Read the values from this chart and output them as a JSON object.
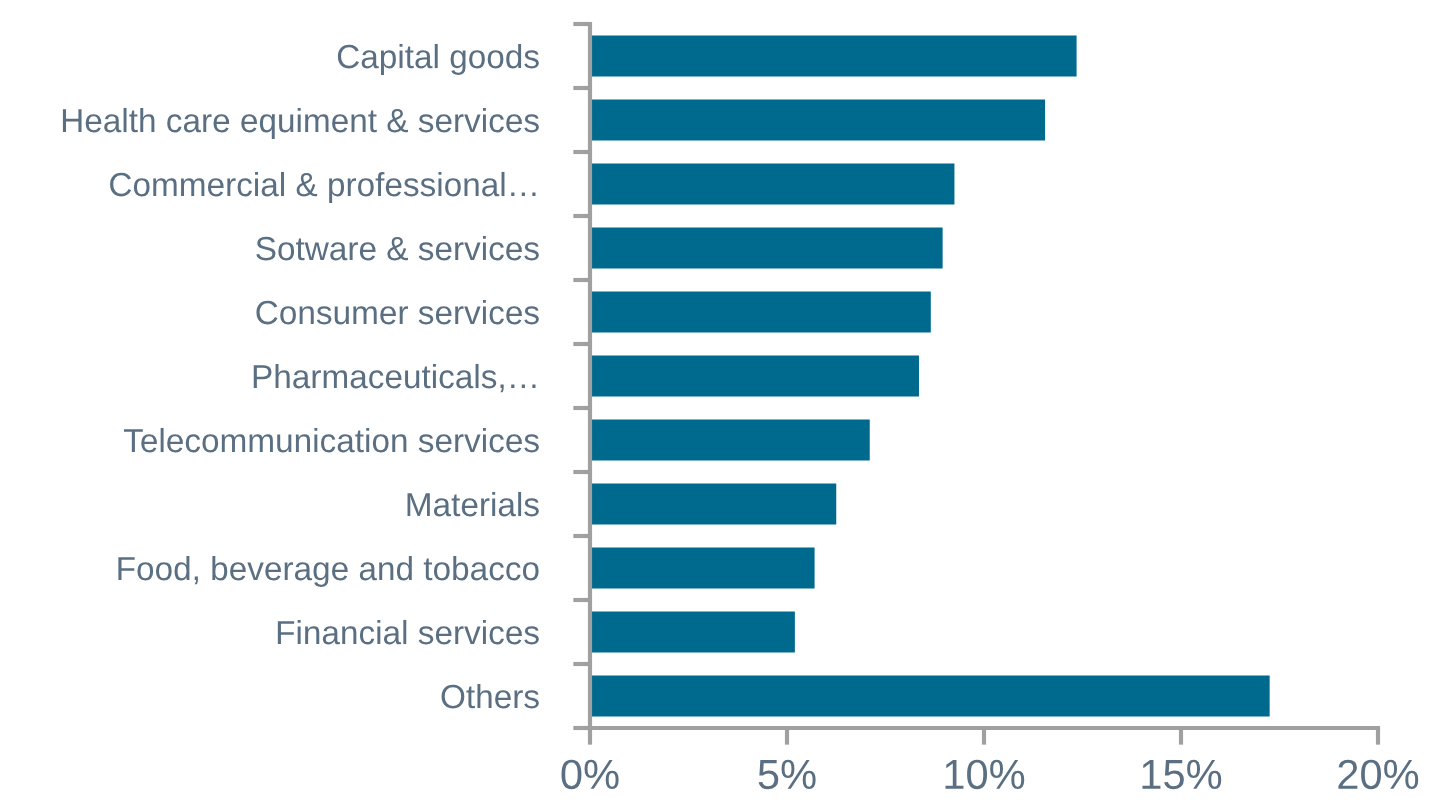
{
  "chart_data": {
    "type": "bar",
    "orientation": "horizontal",
    "categories": [
      "Capital goods",
      "Health care equiment & services",
      "Commercial & professional…",
      "Sotware & services",
      "Consumer services",
      "Pharmaceuticals,…",
      "Telecommunication services",
      "Materials",
      "Food, beverage and tobacco",
      "Financial services",
      "Others"
    ],
    "values": [
      12.35,
      11.55,
      9.25,
      8.95,
      8.65,
      8.35,
      7.1,
      6.25,
      5.7,
      5.2,
      17.25
    ],
    "color": "#006a8e",
    "xlim": [
      0,
      20
    ],
    "xticks": [
      {
        "value": 0,
        "label": "0%"
      },
      {
        "value": 5,
        "label": "5%"
      },
      {
        "value": 10,
        "label": "10%"
      },
      {
        "value": 15,
        "label": "15%"
      },
      {
        "value": 20,
        "label": "20%"
      }
    ],
    "grid": false
  }
}
